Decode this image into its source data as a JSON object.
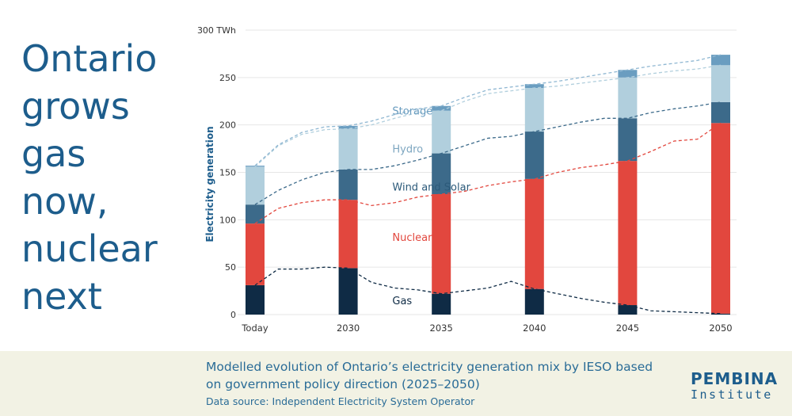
{
  "headline": {
    "lines": [
      "Ontario",
      "grows",
      "gas",
      "now,",
      "nuclear",
      "next"
    ]
  },
  "footer": {
    "caption": "Modelled evolution of Ontario’s electricity generation mix by IESO based on government policy direction (2025–2050)",
    "source": "Data source: Independent Electricity System Operator",
    "logo_top": "PEMBINA",
    "logo_bottom": "Institute"
  },
  "colors": {
    "Gas": "#0f2b45",
    "Nuclear": "#e2473e",
    "Wind and Solar": "#3c6a8a",
    "Hydro": "#b1cfdd",
    "Storage": "#6a9dc0",
    "axis_text": "#333333",
    "ylabel": "#1d5d8c"
  },
  "chart_data": {
    "type": "bar",
    "stacked": true,
    "title": "",
    "xlabel": "",
    "ylabel": "Electricity generation",
    "y_unit_label": "300 TWh",
    "ylim": [
      0,
      300
    ],
    "yticks": [
      0,
      50,
      100,
      150,
      200,
      250
    ],
    "categories": [
      "Today",
      "2030",
      "2035",
      "2040",
      "2045",
      "2050"
    ],
    "series": [
      {
        "name": "Gas",
        "values": [
          31,
          49,
          22,
          27,
          10,
          1
        ]
      },
      {
        "name": "Nuclear",
        "values": [
          65,
          72,
          105,
          116,
          152,
          201
        ]
      },
      {
        "name": "Wind and Solar",
        "values": [
          20,
          32,
          43,
          50,
          45,
          22
        ]
      },
      {
        "name": "Hydro",
        "values": [
          40,
          43,
          45,
          46,
          43,
          39
        ]
      },
      {
        "name": "Storage",
        "values": [
          1,
          3,
          5,
          4,
          8,
          11
        ]
      }
    ],
    "trend_x": [
      0,
      0.5,
      1,
      1.5,
      2,
      2.5,
      3,
      3.5,
      4,
      4.5,
      5,
      5.5,
      6,
      6.5,
      7,
      7.5,
      8,
      8.5,
      9,
      9.5,
      10
    ],
    "trend_lines": [
      {
        "name": "Gas",
        "values": [
          31,
          48,
          48,
          50,
          49,
          34,
          28,
          26,
          22,
          25,
          28,
          35,
          27,
          22,
          17,
          13,
          10,
          4,
          3,
          2,
          1
        ]
      },
      {
        "name": "Nuclear",
        "values": [
          96,
          112,
          118,
          121,
          121,
          115,
          118,
          124,
          127,
          130,
          136,
          140,
          143,
          150,
          155,
          158,
          162,
          172,
          183,
          185,
          202
        ]
      },
      {
        "name": "Wind and Solar",
        "values": [
          116,
          131,
          142,
          150,
          153,
          153,
          157,
          163,
          170,
          178,
          186,
          188,
          193,
          198,
          203,
          207,
          207,
          213,
          217,
          220,
          224
        ]
      },
      {
        "name": "Hydro",
        "values": [
          156,
          178,
          190,
          195,
          196,
          200,
          207,
          213,
          215,
          225,
          233,
          236,
          239,
          241,
          244,
          247,
          250,
          254,
          257,
          259,
          263
        ]
      },
      {
        "name": "Storage",
        "values": [
          157,
          179,
          192,
          198,
          199,
          204,
          211,
          217,
          220,
          229,
          237,
          240,
          243,
          246,
          250,
          254,
          258,
          262,
          265,
          268,
          274
        ]
      }
    ],
    "labels": [
      {
        "name": "Storage",
        "text": "Storage",
        "at_x": 1.5,
        "at_y": 215
      },
      {
        "name": "Hydro",
        "text": "Hydro",
        "at_x": 1.5,
        "at_y": 175
      },
      {
        "name": "Wind and Solar",
        "text": "Wind and Solar",
        "at_x": 1.5,
        "at_y": 135
      },
      {
        "name": "Nuclear",
        "text": "Nuclear",
        "at_x": 1.5,
        "at_y": 82
      },
      {
        "name": "Gas",
        "text": "Gas",
        "at_x": 1.5,
        "at_y": 15
      }
    ]
  }
}
